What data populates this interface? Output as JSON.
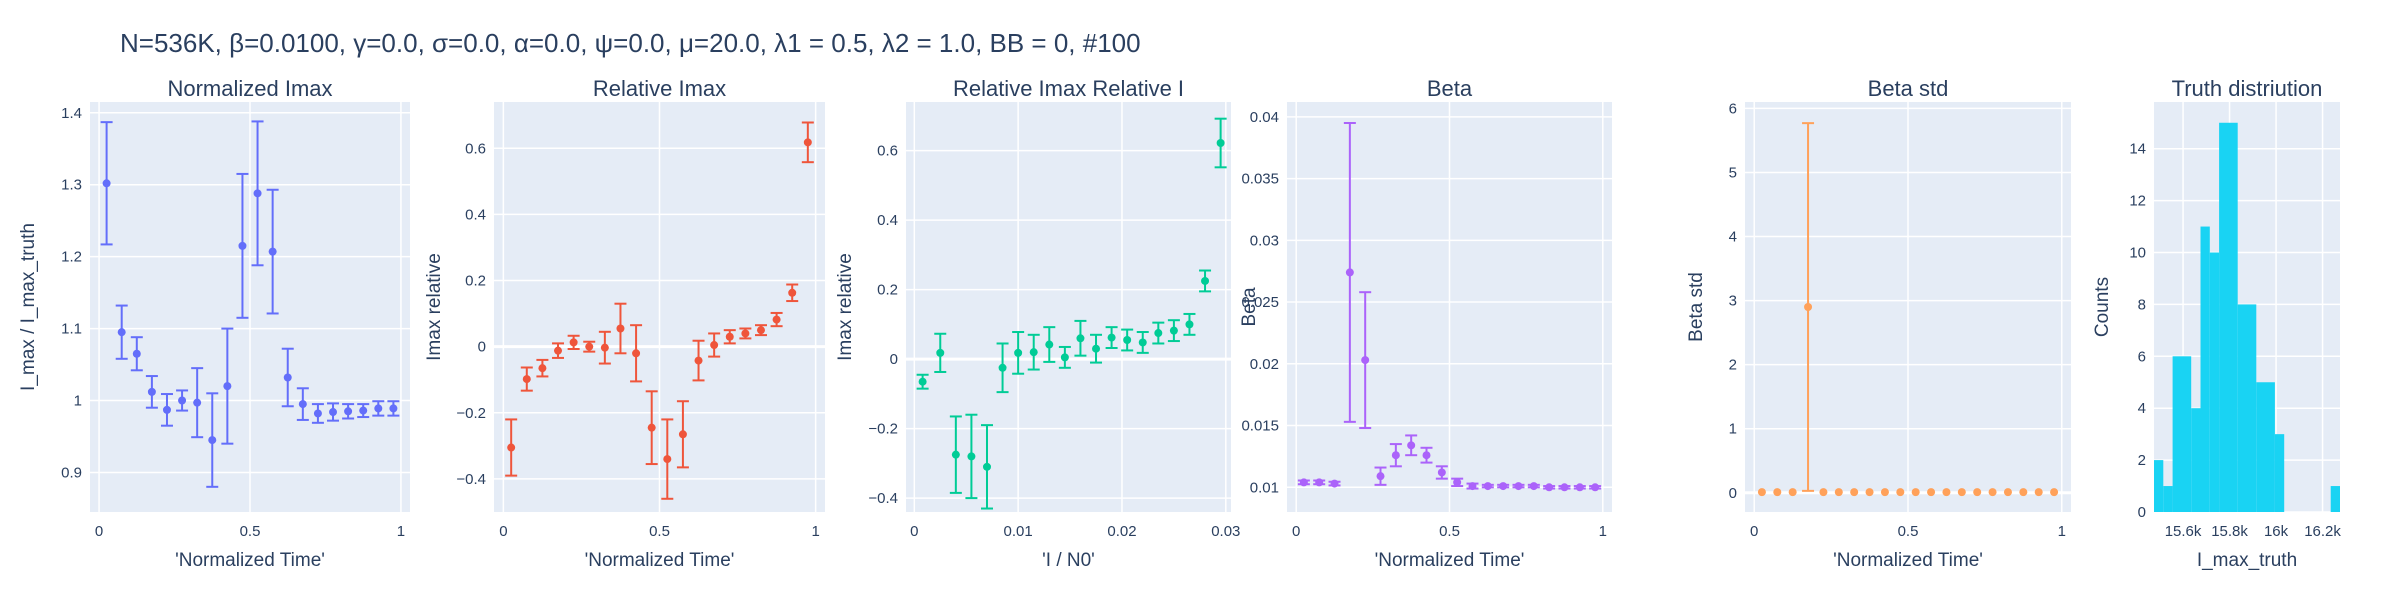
{
  "figure_title": "N=536K, β=0.0100, γ=0.0, σ=0.0,  α=0.0, ψ=0.0, μ=20.0, λ1 = 0.5, λ2 = 1.0, BB = 0, #100",
  "chart_data": [
    {
      "type": "scatter",
      "title": "Normalized Imax",
      "xlabel": "'Normalized Time'",
      "ylabel": "I_max / I_max_truth",
      "xlim": [
        -0.03,
        1.03
      ],
      "ylim": [
        0.845,
        1.415
      ],
      "xticks": [
        0,
        0.5,
        1
      ],
      "xticklabels": [
        "0",
        "0.5",
        "1"
      ],
      "yticks": [
        0.9,
        1,
        1.1,
        1.2,
        1.3,
        1.4
      ],
      "yticklabels": [
        "0.9",
        "1",
        "1.1",
        "1.2",
        "1.3",
        "1.4"
      ],
      "grid": true,
      "color": "#636efa",
      "error_bars": true,
      "series": [
        {
          "x": [
            0.025,
            0.075,
            0.125,
            0.175,
            0.225,
            0.275,
            0.325,
            0.375,
            0.425,
            0.475,
            0.525,
            0.575,
            0.625,
            0.675,
            0.725,
            0.775,
            0.825,
            0.875,
            0.925,
            0.975
          ],
          "y": [
            1.302,
            1.095,
            1.065,
            1.012,
            0.987,
            1.0,
            0.997,
            0.945,
            1.02,
            1.215,
            1.288,
            1.207,
            1.032,
            0.995,
            0.982,
            0.984,
            0.985,
            0.986,
            0.989,
            0.989
          ],
          "err": [
            0.085,
            0.037,
            0.023,
            0.022,
            0.022,
            0.014,
            0.048,
            0.065,
            0.08,
            0.1,
            0.1,
            0.086,
            0.04,
            0.022,
            0.013,
            0.012,
            0.01,
            0.009,
            0.01,
            0.01
          ]
        }
      ]
    },
    {
      "type": "scatter",
      "title": "Relative Imax",
      "xlabel": "'Normalized Time'",
      "ylabel": "Imax relative",
      "xlim": [
        -0.03,
        1.03
      ],
      "ylim": [
        -0.5,
        0.74
      ],
      "xticks": [
        0,
        0.5,
        1
      ],
      "xticklabels": [
        "0",
        "0.5",
        "1"
      ],
      "yticks": [
        -0.4,
        -0.2,
        0,
        0.2,
        0.4,
        0.6
      ],
      "yticklabels": [
        "−0.4",
        "−0.2",
        "0",
        "0.2",
        "0.4",
        "0.6"
      ],
      "grid": true,
      "color": "#ef553b",
      "error_bars": true,
      "series": [
        {
          "x": [
            0.025,
            0.075,
            0.125,
            0.175,
            0.225,
            0.275,
            0.325,
            0.375,
            0.425,
            0.475,
            0.525,
            0.575,
            0.625,
            0.675,
            0.725,
            0.775,
            0.825,
            0.875,
            0.925,
            0.975
          ],
          "y": [
            -0.305,
            -0.098,
            -0.065,
            -0.012,
            0.013,
            0.0,
            -0.003,
            0.055,
            -0.02,
            -0.245,
            -0.34,
            -0.265,
            -0.042,
            0.005,
            0.03,
            0.04,
            0.05,
            0.082,
            0.163,
            0.618
          ],
          "err": [
            0.085,
            0.035,
            0.025,
            0.022,
            0.02,
            0.015,
            0.048,
            0.075,
            0.085,
            0.11,
            0.12,
            0.1,
            0.06,
            0.035,
            0.02,
            0.015,
            0.015,
            0.02,
            0.025,
            0.06
          ]
        }
      ]
    },
    {
      "type": "scatter",
      "title": "Relative Imax Relative I",
      "xlabel": "'I / N0'",
      "ylabel": "Imax relative",
      "xlim": [
        -0.0008,
        0.0305
      ],
      "ylim": [
        -0.44,
        0.74
      ],
      "xticks": [
        0,
        0.01,
        0.02,
        0.03
      ],
      "xticklabels": [
        "0",
        "0.01",
        "0.02",
        "0.03"
      ],
      "yticks": [
        -0.4,
        -0.2,
        0,
        0.2,
        0.4,
        0.6
      ],
      "yticklabels": [
        "−0.4",
        "−0.2",
        "0",
        "0.2",
        "0.4",
        "0.6"
      ],
      "grid": true,
      "color": "#00cc96",
      "error_bars": true,
      "series": [
        {
          "x": [
            0.0008,
            0.0025,
            0.004,
            0.0055,
            0.007,
            0.0085,
            0.01,
            0.0115,
            0.013,
            0.0145,
            0.016,
            0.0175,
            0.019,
            0.0205,
            0.022,
            0.0235,
            0.025,
            0.0265,
            0.028,
            0.0295
          ],
          "y": [
            -0.065,
            0.018,
            -0.275,
            -0.28,
            -0.31,
            -0.025,
            0.018,
            0.02,
            0.042,
            0.005,
            0.06,
            0.03,
            0.062,
            0.055,
            0.048,
            0.075,
            0.082,
            0.1,
            0.225,
            0.622
          ],
          "err": [
            0.02,
            0.055,
            0.11,
            0.12,
            0.12,
            0.07,
            0.06,
            0.05,
            0.05,
            0.03,
            0.05,
            0.04,
            0.03,
            0.03,
            0.03,
            0.03,
            0.03,
            0.03,
            0.03,
            0.07
          ]
        }
      ]
    },
    {
      "type": "scatter",
      "title": "Beta",
      "xlabel": "'Normalized Time'",
      "ylabel": "Beta",
      "xlim": [
        -0.03,
        1.03
      ],
      "ylim": [
        0.008,
        0.0412
      ],
      "xticks": [
        0,
        0.5,
        1
      ],
      "xticklabels": [
        "0",
        "0.5",
        "1"
      ],
      "yticks": [
        0.01,
        0.015,
        0.02,
        0.025,
        0.03,
        0.035,
        0.04
      ],
      "yticklabels": [
        "0.01",
        "0.015",
        "0.02",
        "0.025",
        "0.03",
        "0.035",
        "0.04"
      ],
      "grid": true,
      "color": "#ab63fa",
      "error_bars": true,
      "series": [
        {
          "x": [
            0.025,
            0.075,
            0.125,
            0.175,
            0.225,
            0.275,
            0.325,
            0.375,
            0.425,
            0.475,
            0.525,
            0.575,
            0.625,
            0.675,
            0.725,
            0.775,
            0.825,
            0.875,
            0.925,
            0.975
          ],
          "y": [
            0.0104,
            0.0104,
            0.0103,
            0.0274,
            0.0203,
            0.0109,
            0.0126,
            0.0134,
            0.0126,
            0.0112,
            0.0104,
            0.0101,
            0.0101,
            0.0101,
            0.0101,
            0.0101,
            0.01,
            0.01,
            0.01,
            0.01
          ],
          "err": [
            0.00015,
            0.00015,
            0.00015,
            0.0121,
            0.0055,
            0.0007,
            0.0009,
            0.0008,
            0.0006,
            0.0005,
            0.0003,
            0.0002,
            0.0001,
            0.0001,
            0.0001,
            0.0001,
            0.0001,
            0.0001,
            0.0001,
            0.0001
          ]
        }
      ]
    },
    {
      "type": "scatter",
      "title": "Beta std",
      "xlabel": "'Normalized Time'",
      "ylabel": "Beta std",
      "xlim": [
        -0.03,
        1.03
      ],
      "ylim": [
        -0.3,
        6.1
      ],
      "xticks": [
        0,
        0.5,
        1
      ],
      "xticklabels": [
        "0",
        "0.5",
        "1"
      ],
      "yticks": [
        0,
        1,
        2,
        3,
        4,
        5,
        6
      ],
      "yticklabels": [
        "0",
        "1",
        "2",
        "3",
        "4",
        "5",
        "6"
      ],
      "grid": true,
      "color": "#ffa15a",
      "error_bars": true,
      "series": [
        {
          "x": [
            0.025,
            0.075,
            0.125,
            0.175,
            0.225,
            0.275,
            0.325,
            0.375,
            0.425,
            0.475,
            0.525,
            0.575,
            0.625,
            0.675,
            0.725,
            0.775,
            0.825,
            0.875,
            0.925,
            0.975
          ],
          "y": [
            0.01,
            0.01,
            0.01,
            2.9,
            0.01,
            0.01,
            0.01,
            0.01,
            0.01,
            0.01,
            0.01,
            0.01,
            0.01,
            0.01,
            0.01,
            0.01,
            0.01,
            0.01,
            0.01,
            0.01
          ],
          "err": [
            0,
            0,
            0,
            2.87,
            0,
            0,
            0,
            0,
            0,
            0,
            0,
            0,
            0,
            0,
            0,
            0,
            0,
            0,
            0,
            0
          ]
        }
      ]
    },
    {
      "type": "bar",
      "title": "Truth distriution",
      "xlabel": "I_max_truth",
      "ylabel": "Counts",
      "xlim": [
        15475,
        16275
      ],
      "ylim": [
        0,
        15.8
      ],
      "xticks": [
        15600,
        15800,
        16000,
        16200
      ],
      "xticklabels": [
        "15.6k",
        "15.8k",
        "16k",
        "16.2k"
      ],
      "yticks": [
        0,
        2,
        4,
        6,
        8,
        10,
        12,
        14
      ],
      "yticklabels": [
        "0",
        "2",
        "4",
        "6",
        "8",
        "10",
        "12",
        "14"
      ],
      "grid": true,
      "color": "#19d3f3",
      "bins": [
        {
          "x0": 15475,
          "x1": 15515,
          "count": 2
        },
        {
          "x0": 15515,
          "x1": 15555,
          "count": 1
        },
        {
          "x0": 15555,
          "x1": 15635,
          "count": 6
        },
        {
          "x0": 15635,
          "x1": 15675,
          "count": 4
        },
        {
          "x0": 15675,
          "x1": 15715,
          "count": 11
        },
        {
          "x0": 15715,
          "x1": 15755,
          "count": 10
        },
        {
          "x0": 15755,
          "x1": 15835,
          "count": 15
        },
        {
          "x0": 15835,
          "x1": 15915,
          "count": 8
        },
        {
          "x0": 15915,
          "x1": 15995,
          "count": 5
        },
        {
          "x0": 15995,
          "x1": 16035,
          "count": 3
        },
        {
          "x0": 16035,
          "x1": 16235,
          "count": 0
        },
        {
          "x0": 16235,
          "x1": 16275,
          "count": 1
        }
      ]
    }
  ]
}
